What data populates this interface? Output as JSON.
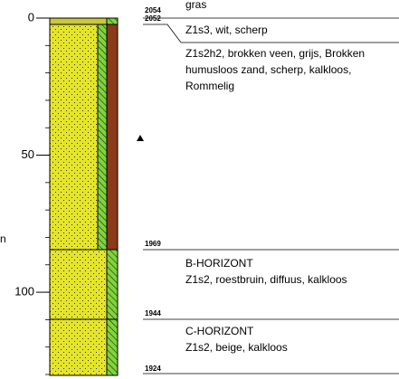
{
  "axis": {
    "label": "n",
    "ylim": [
      0,
      130
    ],
    "ticks": [
      0,
      50,
      100
    ]
  },
  "levels": [
    "2054",
    "2052",
    "1969",
    "1944",
    "1924"
  ],
  "layers": [
    {
      "lines": [
        "gras"
      ]
    },
    {
      "lines": [
        "Z1s3, wit, scherp"
      ]
    },
    {
      "lines": [
        "Z1s2h2, brokken veen, grijs, Brokken",
        "humusloos zand, scherp, kalkloos,",
        "Rommelig"
      ]
    },
    {
      "lines": [
        "B-HORIZONT",
        "Z1s2, roestbruin, diffuus, kalkloos"
      ]
    },
    {
      "lines": [
        "C-HORIZONT",
        "Z1s2, beige, kalkloos"
      ]
    }
  ]
}
